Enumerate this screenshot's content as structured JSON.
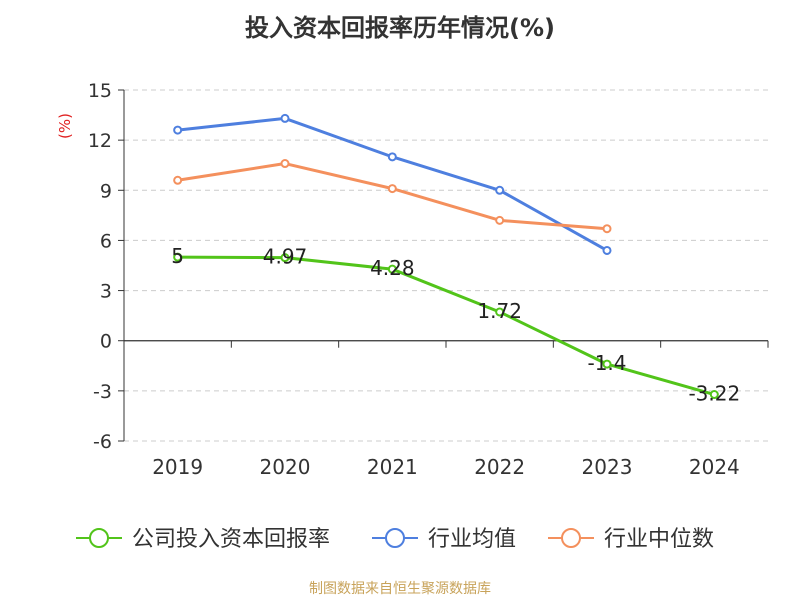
{
  "chart_data": {
    "type": "line",
    "title": "投入资本回报率历年情况(%)",
    "ylabel": "(%)",
    "x": [
      "2019",
      "2020",
      "2021",
      "2022",
      "2023",
      "2024"
    ],
    "ylim": [
      -6,
      15
    ],
    "yticks": [
      15,
      12,
      9,
      6,
      3,
      0,
      -3,
      -6
    ],
    "grid": true,
    "legend_position": "bottom",
    "series": [
      {
        "name": "公司投入资本回报率",
        "color": "#52c41a",
        "values": [
          5,
          4.97,
          4.28,
          1.72,
          -1.4,
          -3.22
        ],
        "labels": [
          "5",
          "4.97",
          "4.28",
          "1.72",
          "-1.4",
          "-3.22"
        ]
      },
      {
        "name": "行业均值",
        "color": "#4e7fdf",
        "values": [
          12.6,
          13.3,
          11.0,
          9.0,
          5.4,
          null
        ]
      },
      {
        "name": "行业中位数",
        "color": "#f4905d",
        "values": [
          9.6,
          10.6,
          9.1,
          7.2,
          6.7,
          null
        ]
      }
    ]
  },
  "footer": "制图数据来自恒生聚源数据库"
}
